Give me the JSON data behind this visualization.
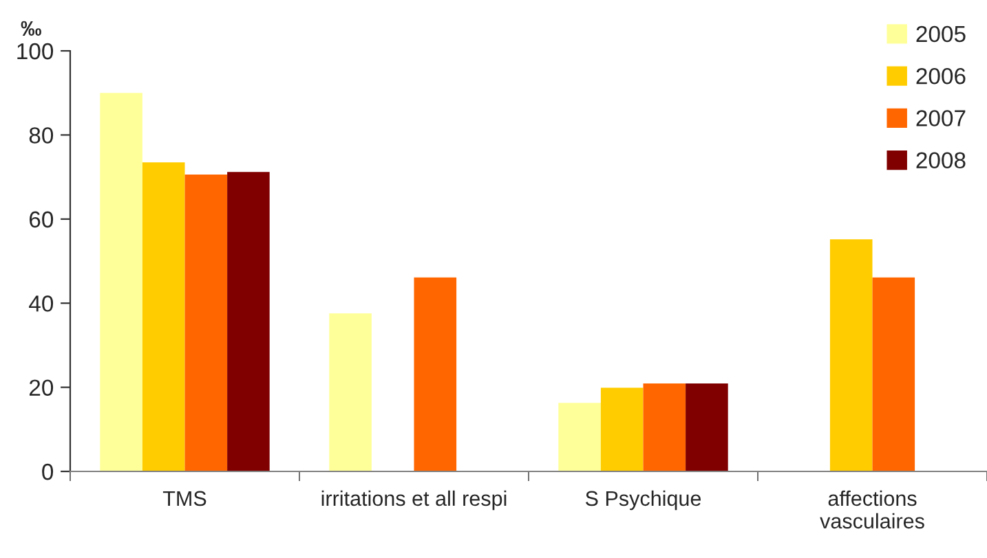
{
  "chart_data": {
    "type": "bar",
    "ylabel": "‰",
    "categories": [
      "TMS",
      "irritations et all respi",
      "S Psychique",
      "affections\nvasculaires"
    ],
    "series": [
      {
        "name": "2005",
        "color": "#ffff99",
        "values": [
          90,
          37.6,
          16.3,
          null
        ]
      },
      {
        "name": "2006",
        "color": "#ffcc00",
        "values": [
          73.5,
          null,
          19.9,
          55.2
        ]
      },
      {
        "name": "2007",
        "color": "#ff6600",
        "values": [
          70.6,
          46.1,
          20.9,
          46.1
        ]
      },
      {
        "name": "2008",
        "color": "#800000",
        "values": [
          71.2,
          null,
          20.9,
          null
        ]
      }
    ],
    "ylim": [
      0,
      100
    ],
    "yticks": [
      0,
      20,
      40,
      60,
      80,
      100
    ],
    "grid": false,
    "legend": "top right"
  }
}
